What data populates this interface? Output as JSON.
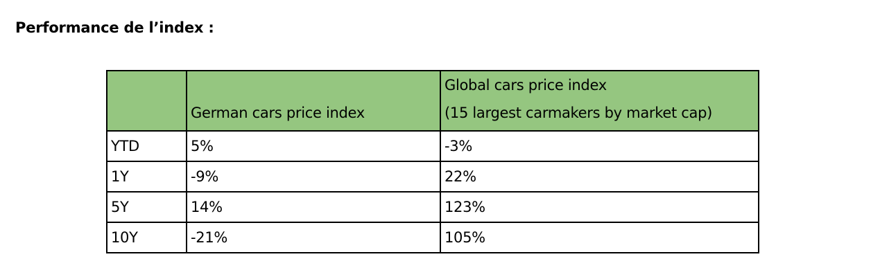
{
  "title": "Performance de l’index :",
  "table": {
    "headers": [
      "",
      "German cars price index",
      [
        "Global cars price index",
        "(15 largest carmakers by market cap)"
      ]
    ],
    "rows": [
      [
        "YTD",
        "5%",
        "-3%"
      ],
      [
        "1Y",
        "-9%",
        "22%"
      ],
      [
        "5Y",
        "14%",
        "123%"
      ],
      [
        "10Y",
        "-21%",
        "105%"
      ]
    ]
  },
  "colors": {
    "header_background": "#95c680",
    "border": "#000000"
  }
}
